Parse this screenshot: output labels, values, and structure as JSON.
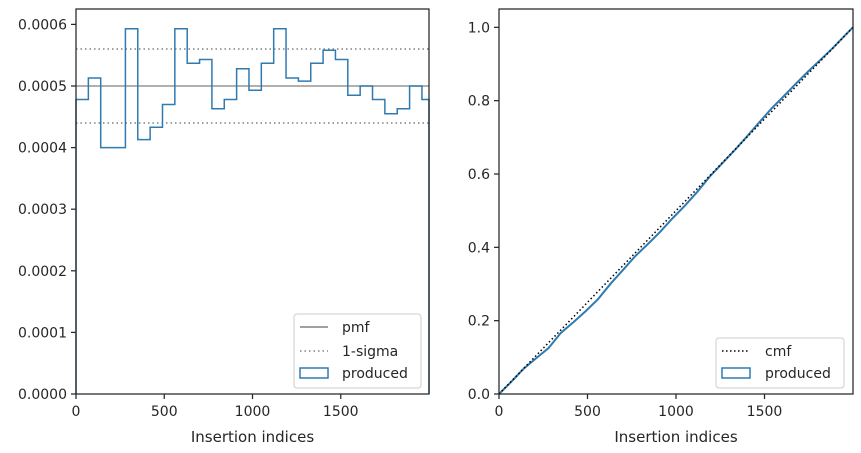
{
  "chart_data": [
    {
      "type": "step",
      "xlabel": "Insertion indices",
      "ylabel": "",
      "xlim": [
        0,
        2000
      ],
      "ylim": [
        0,
        0.000625
      ],
      "xticks": [
        0,
        500,
        1000,
        1500
      ],
      "xtick_labels": [
        "0",
        "500",
        "1000",
        "1500"
      ],
      "yticks": [
        0,
        0.0001,
        0.0002,
        0.0003,
        0.0004,
        0.0005,
        0.0006
      ],
      "ytick_labels": [
        "0.0000",
        "0.0001",
        "0.0002",
        "0.0003",
        "0.0004",
        "0.0005",
        "0.0006"
      ],
      "legend_position": "lower-right",
      "pmf": {
        "name": "pmf",
        "value": 0.0005,
        "color": "#808080"
      },
      "sigma": {
        "name": "1-sigma",
        "values": [
          0.00044,
          0.00056
        ],
        "color": "#808080"
      },
      "histogram": {
        "name": "produced",
        "color": "#2f7bb0",
        "bin_edges": [
          0,
          70,
          140,
          210,
          280,
          350,
          420,
          490,
          560,
          630,
          700,
          770,
          840,
          910,
          980,
          1050,
          1120,
          1190,
          1260,
          1330,
          1400,
          1470,
          1540,
          1610,
          1680,
          1750,
          1820,
          1890,
          1960,
          2000
        ],
        "values": [
          0.000478,
          0.000513,
          0.0004,
          0.0004,
          0.000593,
          0.000413,
          0.000433,
          0.00047,
          0.000593,
          0.000537,
          0.000543,
          0.000463,
          0.000478,
          0.000528,
          0.000493,
          0.000537,
          0.000593,
          0.000513,
          0.000508,
          0.000537,
          0.000558,
          0.000543,
          0.000485,
          0.0005,
          0.000478,
          0.000455,
          0.000463,
          0.0005,
          0.000478
        ]
      }
    },
    {
      "type": "line",
      "xlabel": "Insertion indices",
      "ylabel": "",
      "xlim": [
        0,
        2000
      ],
      "ylim": [
        0,
        1.05
      ],
      "xticks": [
        0,
        500,
        1000,
        1500
      ],
      "xtick_labels": [
        "0",
        "500",
        "1000",
        "1500"
      ],
      "yticks": [
        0,
        0.2,
        0.4,
        0.6,
        0.8,
        1.0
      ],
      "ytick_labels": [
        "0.0",
        "0.2",
        "0.4",
        "0.6",
        "0.8",
        "1.0"
      ],
      "legend_position": "lower-right",
      "cmf": {
        "name": "cmf",
        "x": [
          0,
          2000
        ],
        "y": [
          0,
          1
        ],
        "color": "#000000"
      },
      "produced": {
        "name": "produced",
        "color": "#2f7bb0",
        "x": [
          0,
          70,
          140,
          210,
          280,
          350,
          420,
          490,
          560,
          630,
          700,
          770,
          840,
          910,
          980,
          1050,
          1120,
          1190,
          1260,
          1330,
          1400,
          1470,
          1540,
          1610,
          1680,
          1750,
          1820,
          1890,
          1960,
          2000
        ],
        "y": [
          0,
          0.0335,
          0.0694,
          0.0974,
          0.1254,
          0.1669,
          0.1958,
          0.2261,
          0.259,
          0.3005,
          0.3381,
          0.3761,
          0.4085,
          0.442,
          0.479,
          0.5135,
          0.5511,
          0.5926,
          0.6285,
          0.6641,
          0.7017,
          0.7408,
          0.7788,
          0.8127,
          0.8477,
          0.8812,
          0.9131,
          0.9455,
          0.9805,
          1.0
        ]
      }
    }
  ]
}
